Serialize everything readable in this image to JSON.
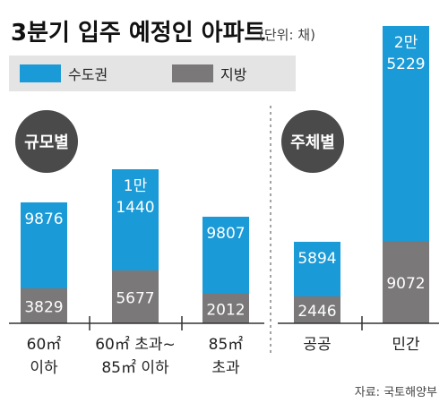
{
  "chart_data": {
    "type": "bar",
    "stacked": true,
    "title": "3분기 입주 예정인 아파트",
    "unit": "(단위: 채)",
    "source": "자료: 국토해양부",
    "legend": [
      {
        "name": "수도권",
        "color": "#1a9ad6"
      },
      {
        "name": "지방",
        "color": "#7a7879"
      }
    ],
    "groups": [
      {
        "badge": "규모별",
        "categories": [
          [
            "60㎡",
            "이하"
          ],
          [
            "60㎡ 초과~",
            "85㎡ 이하"
          ],
          [
            "85㎡",
            "초과"
          ]
        ]
      },
      {
        "badge": "주체별",
        "categories": [
          [
            "공공"
          ],
          [
            "민간"
          ]
        ]
      }
    ],
    "series": [
      {
        "name": "수도권",
        "values": [
          9876,
          11440,
          9807,
          5894,
          25229
        ],
        "labels": [
          [
            "9876"
          ],
          [
            "1만",
            "1440"
          ],
          [
            "9807"
          ],
          [
            "5894"
          ],
          [
            "2만",
            "5229"
          ]
        ]
      },
      {
        "name": "지방",
        "values": [
          3829,
          5677,
          2012,
          2446,
          9072
        ],
        "labels": [
          [
            "3829"
          ],
          [
            "5677"
          ],
          [
            "2012"
          ],
          [
            "2446"
          ],
          [
            "9072"
          ]
        ]
      }
    ]
  }
}
